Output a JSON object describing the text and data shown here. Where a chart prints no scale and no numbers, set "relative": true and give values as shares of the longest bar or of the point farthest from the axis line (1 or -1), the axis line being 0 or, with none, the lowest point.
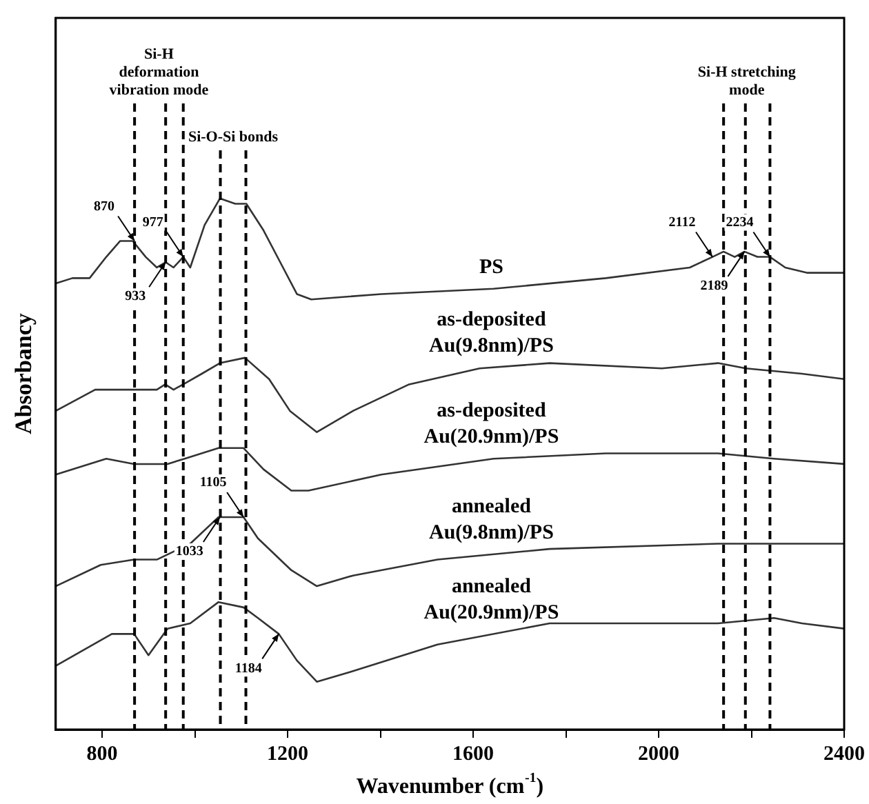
{
  "chart_data": {
    "type": "line",
    "xlabel": "Wavenumber (cm$^{-1}$)",
    "ylabel": "Absorbancy",
    "relative": true,
    "xlim": [
      700,
      2400
    ],
    "xticks": [
      800,
      {
        "value": 1000,
        "label": null
      },
      1200,
      {
        "value": 1400,
        "label": null
      },
      1600,
      {
        "value": 1800,
        "label": null
      },
      2000,
      {
        "value": 2200,
        "label": null
      },
      2400
    ],
    "grid": false,
    "legend": false,
    "marker": "none",
    "line_style": "solid",
    "series": [
      {
        "name": "PS",
        "color": "#333333",
        "x": [
          700,
          736,
          773,
          809,
          839,
          866,
          894,
          918,
          937,
          954,
          975,
          990,
          1021,
          1054,
          1087,
          1111,
          1148,
          1184,
          1220,
          1251,
          1402,
          1644,
          1886,
          2067,
          2116,
          2140,
          2164,
          2185,
          2213,
          2240,
          2273,
          2321,
          2400
        ],
        "values": [
          0.84,
          0.85,
          0.85,
          0.89,
          0.92,
          0.92,
          0.89,
          0.87,
          0.88,
          0.87,
          0.89,
          0.87,
          0.95,
          1.0,
          0.99,
          0.99,
          0.94,
          0.88,
          0.82,
          0.81,
          0.82,
          0.83,
          0.85,
          0.87,
          0.89,
          0.9,
          0.89,
          0.9,
          0.89,
          0.89,
          0.87,
          0.86,
          0.86
        ]
      },
      {
        "name": "as-deposited Au(9.8nm)/PS",
        "color": "#333333",
        "x": [
          700,
          785,
          857,
          918,
          936,
          954,
          975,
          1015,
          1054,
          1108,
          1160,
          1205,
          1263,
          1341,
          1462,
          1614,
          1765,
          2007,
          2128,
          2188,
          2309,
          2400
        ],
        "values": [
          0.6,
          0.64,
          0.64,
          0.64,
          0.65,
          0.64,
          0.65,
          0.67,
          0.69,
          0.7,
          0.66,
          0.6,
          0.56,
          0.6,
          0.65,
          0.68,
          0.69,
          0.68,
          0.69,
          0.68,
          0.67,
          0.66
        ]
      },
      {
        "name": "as-deposited Au(20.9nm)/PS",
        "color": "#333333",
        "x": [
          700,
          809,
          869,
          941,
          978,
          1051,
          1105,
          1148,
          1208,
          1245,
          1402,
          1644,
          1886,
          2128,
          2249,
          2400
        ],
        "values": [
          0.48,
          0.51,
          0.5,
          0.5,
          0.51,
          0.53,
          0.53,
          0.49,
          0.45,
          0.45,
          0.48,
          0.51,
          0.52,
          0.52,
          0.51,
          0.5
        ]
      },
      {
        "name": "annealed Au(9.8nm)/PS",
        "color": "#333333",
        "x": [
          700,
          797,
          869,
          918,
          990,
          1051,
          1105,
          1136,
          1208,
          1263,
          1341,
          1523,
          1765,
          2128,
          2249,
          2309,
          2400
        ],
        "values": [
          0.27,
          0.31,
          0.32,
          0.32,
          0.35,
          0.4,
          0.4,
          0.36,
          0.3,
          0.27,
          0.29,
          0.32,
          0.34,
          0.35,
          0.35,
          0.35,
          0.35
        ]
      },
      {
        "name": "annealed Au(20.9nm)/PS",
        "color": "#333333",
        "x": [
          700,
          821,
          869,
          900,
          941,
          990,
          1051,
          1105,
          1136,
          1181,
          1220,
          1263,
          1341,
          1523,
          1765,
          2128,
          2249,
          2309,
          2400
        ],
        "values": [
          0.12,
          0.18,
          0.18,
          0.14,
          0.19,
          0.2,
          0.24,
          0.23,
          0.21,
          0.18,
          0.13,
          0.09,
          0.11,
          0.16,
          0.2,
          0.2,
          0.21,
          0.2,
          0.19
        ]
      }
    ],
    "ref_lines": [
      {
        "axis": "x",
        "value": 870,
        "label": "Si-H deformation vibration mode",
        "color": "#000000",
        "line_style": "dashed"
      },
      {
        "axis": "x",
        "value": 937,
        "color": "#000000",
        "line_style": "dashed"
      },
      {
        "axis": "x",
        "value": 975,
        "color": "#000000",
        "line_style": "dashed"
      },
      {
        "axis": "x",
        "value": 1055,
        "label": "Si-O-Si bonds",
        "color": "#000000",
        "line_style": "dashed"
      },
      {
        "axis": "x",
        "value": 1110,
        "color": "#000000",
        "line_style": "dashed"
      },
      {
        "axis": "x",
        "value": 2140,
        "label": "Si-H stretching mode",
        "color": "#000000",
        "line_style": "dashed"
      },
      {
        "axis": "x",
        "value": 2187,
        "color": "#000000",
        "line_style": "dashed"
      },
      {
        "axis": "x",
        "value": 2240,
        "color": "#000000",
        "line_style": "dashed"
      }
    ],
    "annotations": [
      {
        "text": "870",
        "x": 870,
        "y": 0.92
      },
      {
        "text": "933",
        "x": 937,
        "y": 0.88
      },
      {
        "text": "977",
        "x": 975,
        "y": 0.89
      },
      {
        "text": "1033",
        "x": 1054,
        "y": 0.4
      },
      {
        "text": "1105",
        "x": 1105,
        "y": 0.4
      },
      {
        "text": "1184",
        "x": 1181,
        "y": 0.18
      },
      {
        "text": "2112",
        "x": 2116,
        "y": 0.89
      },
      {
        "text": "2189",
        "x": 2185,
        "y": 0.9
      },
      {
        "text": "2234",
        "x": 2240,
        "y": 0.89
      }
    ]
  }
}
